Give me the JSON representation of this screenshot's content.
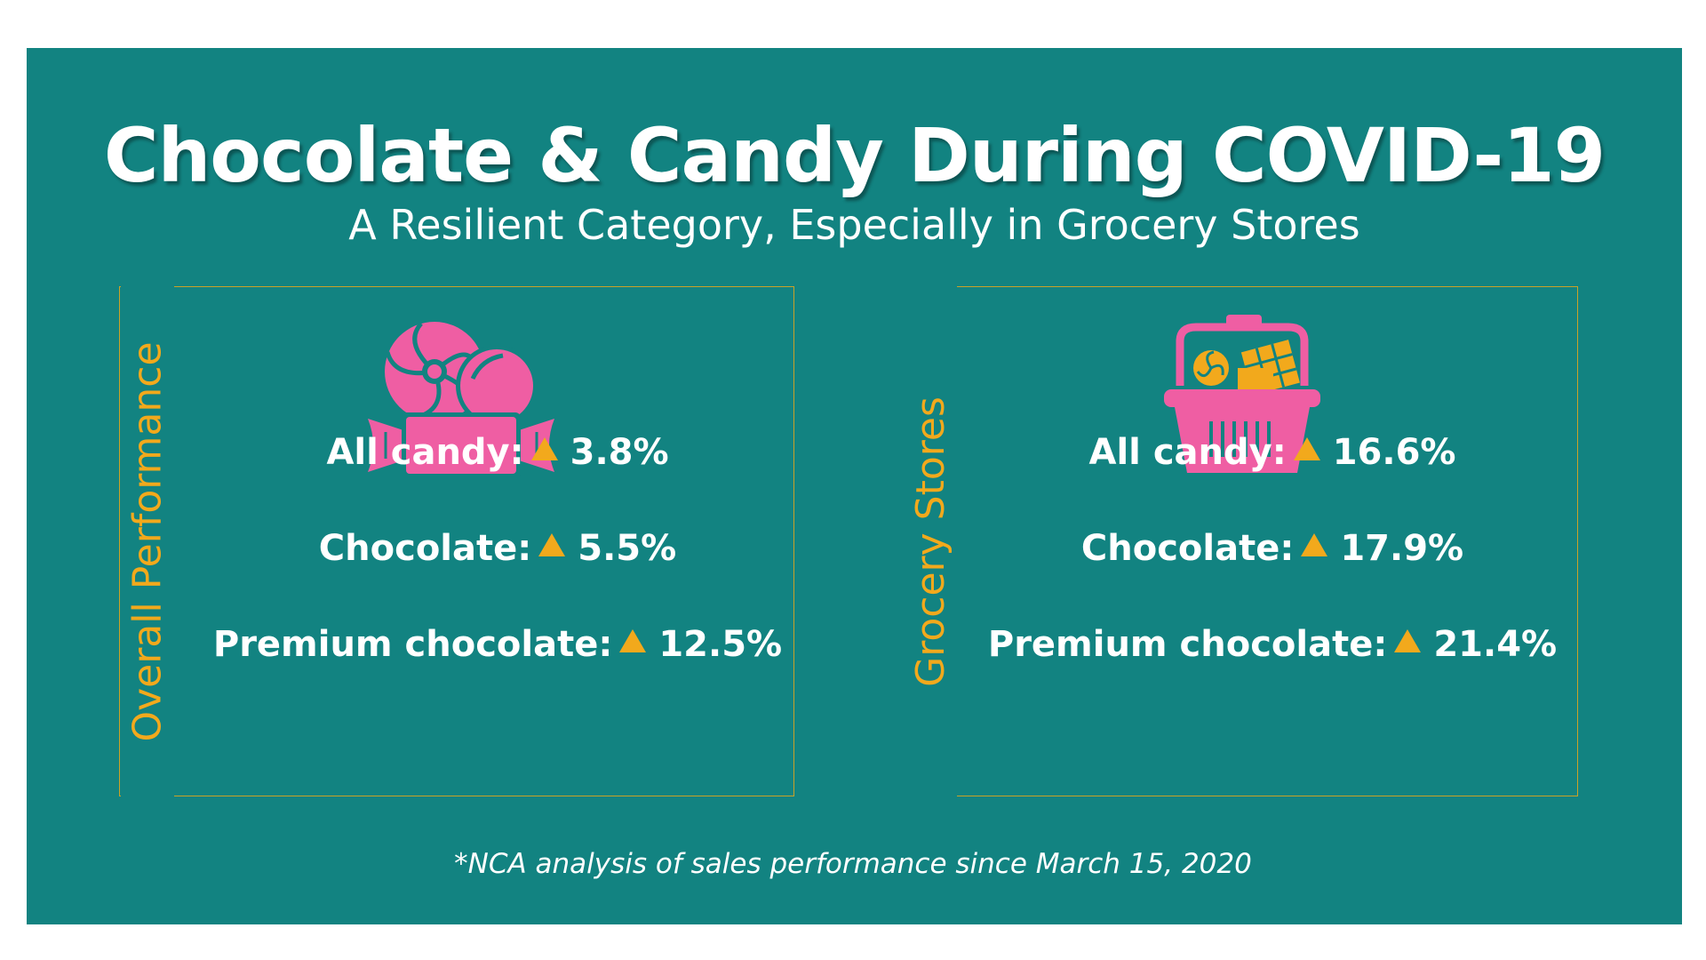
{
  "title": "Chocolate & Candy During COVID-19",
  "subtitle": "A Resilient Category, Especially in Grocery Stores",
  "colors": {
    "background": "#128381",
    "accent": "#f2a91c",
    "icon_pink": "#ef5ea3",
    "text": "#ffffff"
  },
  "overall": {
    "label": "Overall Performance",
    "icon": "candy-icon",
    "stats": [
      {
        "label": "All candy:",
        "value": "3.8%"
      },
      {
        "label": "Chocolate:",
        "value": "5.5%"
      },
      {
        "label": "Premium chocolate:",
        "value": "12.5%"
      }
    ]
  },
  "grocery": {
    "label": "Grocery Stores",
    "icon": "shopping-basket-icon",
    "stats": [
      {
        "label": "All candy:",
        "value": "16.6%"
      },
      {
        "label": "Chocolate:",
        "value": "17.9%"
      },
      {
        "label": "Premium chocolate:",
        "value": "21.4%"
      }
    ]
  },
  "footnote": "*NCA analysis of sales performance since March 15, 2020"
}
